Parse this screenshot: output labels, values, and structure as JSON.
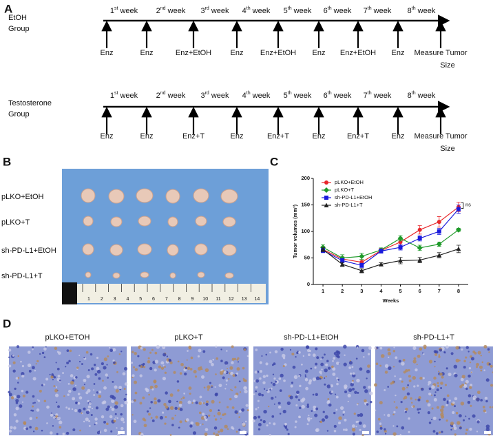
{
  "panels": {
    "a": "A",
    "b": "B",
    "c": "C",
    "d": "D"
  },
  "timeline": {
    "groups": [
      {
        "name": [
          "EtOH",
          "Group"
        ],
        "weeks": [
          [
            "1",
            "st",
            " week"
          ],
          [
            "2",
            "nd",
            " week"
          ],
          [
            "3",
            "rd",
            " week"
          ],
          [
            "4",
            "th",
            " week"
          ],
          [
            "5",
            "th",
            " week"
          ],
          [
            "6",
            "th",
            " week"
          ],
          [
            "7",
            "th",
            " week"
          ],
          [
            "8",
            "th",
            " week"
          ]
        ],
        "events": [
          [
            "Enz"
          ],
          [
            "Enz"
          ],
          [
            "Enz+EtOH"
          ],
          [
            "Enz"
          ],
          [
            "Enz+EtOH"
          ],
          [
            "Enz"
          ],
          [
            "Enz+EtOH"
          ],
          [
            "Enz"
          ],
          [
            "Measure Tumor",
            "Size"
          ]
        ]
      },
      {
        "name": [
          "Testosterone",
          "Group"
        ],
        "weeks": [
          [
            "1",
            "st",
            " week"
          ],
          [
            "2",
            "nd",
            " week"
          ],
          [
            "3",
            "rd",
            " week"
          ],
          [
            "4",
            "th",
            " week"
          ],
          [
            "5",
            "th",
            " week"
          ],
          [
            "6",
            "th",
            " week"
          ],
          [
            "7",
            "th",
            " week"
          ],
          [
            "8",
            "th",
            " week"
          ]
        ],
        "events": [
          [
            "Enz"
          ],
          [
            "Enz"
          ],
          [
            "Enz+T"
          ],
          [
            "Enz"
          ],
          [
            "Enz+T"
          ],
          [
            "Enz"
          ],
          [
            "Enz+T"
          ],
          [
            "Enz"
          ],
          [
            "Measure Tumor",
            "Size"
          ]
        ]
      }
    ]
  },
  "photo": {
    "rows": [
      "pLKO+EtOH",
      "pLKO+T",
      "sh-PD-L1+EtOH",
      "sh-PD-L1+T"
    ],
    "ruler": [
      1,
      2,
      3,
      4,
      5,
      6,
      7,
      8,
      9,
      10,
      11,
      12,
      13,
      14
    ]
  },
  "histology": {
    "titles": [
      "pLKO+ETOH",
      "pLKO+T",
      "sh-PD-L1+EtOH",
      "sh-PD-L1+T"
    ]
  },
  "chart_data": {
    "type": "line",
    "xlabel": "Weeks",
    "ylabel": "Tumor volumes (mm³)",
    "x": [
      1,
      2,
      3,
      4,
      5,
      6,
      7,
      8
    ],
    "xlim": [
      0.5,
      8.5
    ],
    "xticks": [
      1,
      2,
      3,
      4,
      5,
      6,
      7,
      8
    ],
    "ylim": [
      0,
      200
    ],
    "yticks": [
      0,
      50,
      100,
      150,
      200
    ],
    "legend": "upper left",
    "annotation": "ns",
    "series": [
      {
        "name": "pLKO+EtOH",
        "color": "#e8262a",
        "marker": "circle",
        "values": [
          66,
          48,
          42,
          64,
          80,
          103,
          118,
          146
        ],
        "errors": [
          4,
          4,
          5,
          4,
          5,
          8,
          10,
          9
        ]
      },
      {
        "name": "pLKO+T",
        "color": "#1f9a2a",
        "marker": "diamond",
        "values": [
          70,
          50,
          53,
          65,
          87,
          69,
          76,
          103
        ],
        "errors": [
          5,
          6,
          6,
          4,
          5,
          5,
          4,
          3
        ]
      },
      {
        "name": "sh-PD-L1+EtOH",
        "color": "#1a1adc",
        "marker": "square",
        "values": [
          64,
          45,
          36,
          63,
          70,
          87,
          100,
          142
        ],
        "errors": [
          4,
          4,
          4,
          4,
          5,
          5,
          6,
          8
        ]
      },
      {
        "name": "sh-PD-L1+T",
        "color": "#222222",
        "marker": "triangle",
        "values": [
          66,
          38,
          26,
          38,
          45,
          46,
          55,
          67
        ],
        "errors": [
          4,
          4,
          4,
          3,
          6,
          5,
          5,
          7
        ]
      }
    ]
  }
}
